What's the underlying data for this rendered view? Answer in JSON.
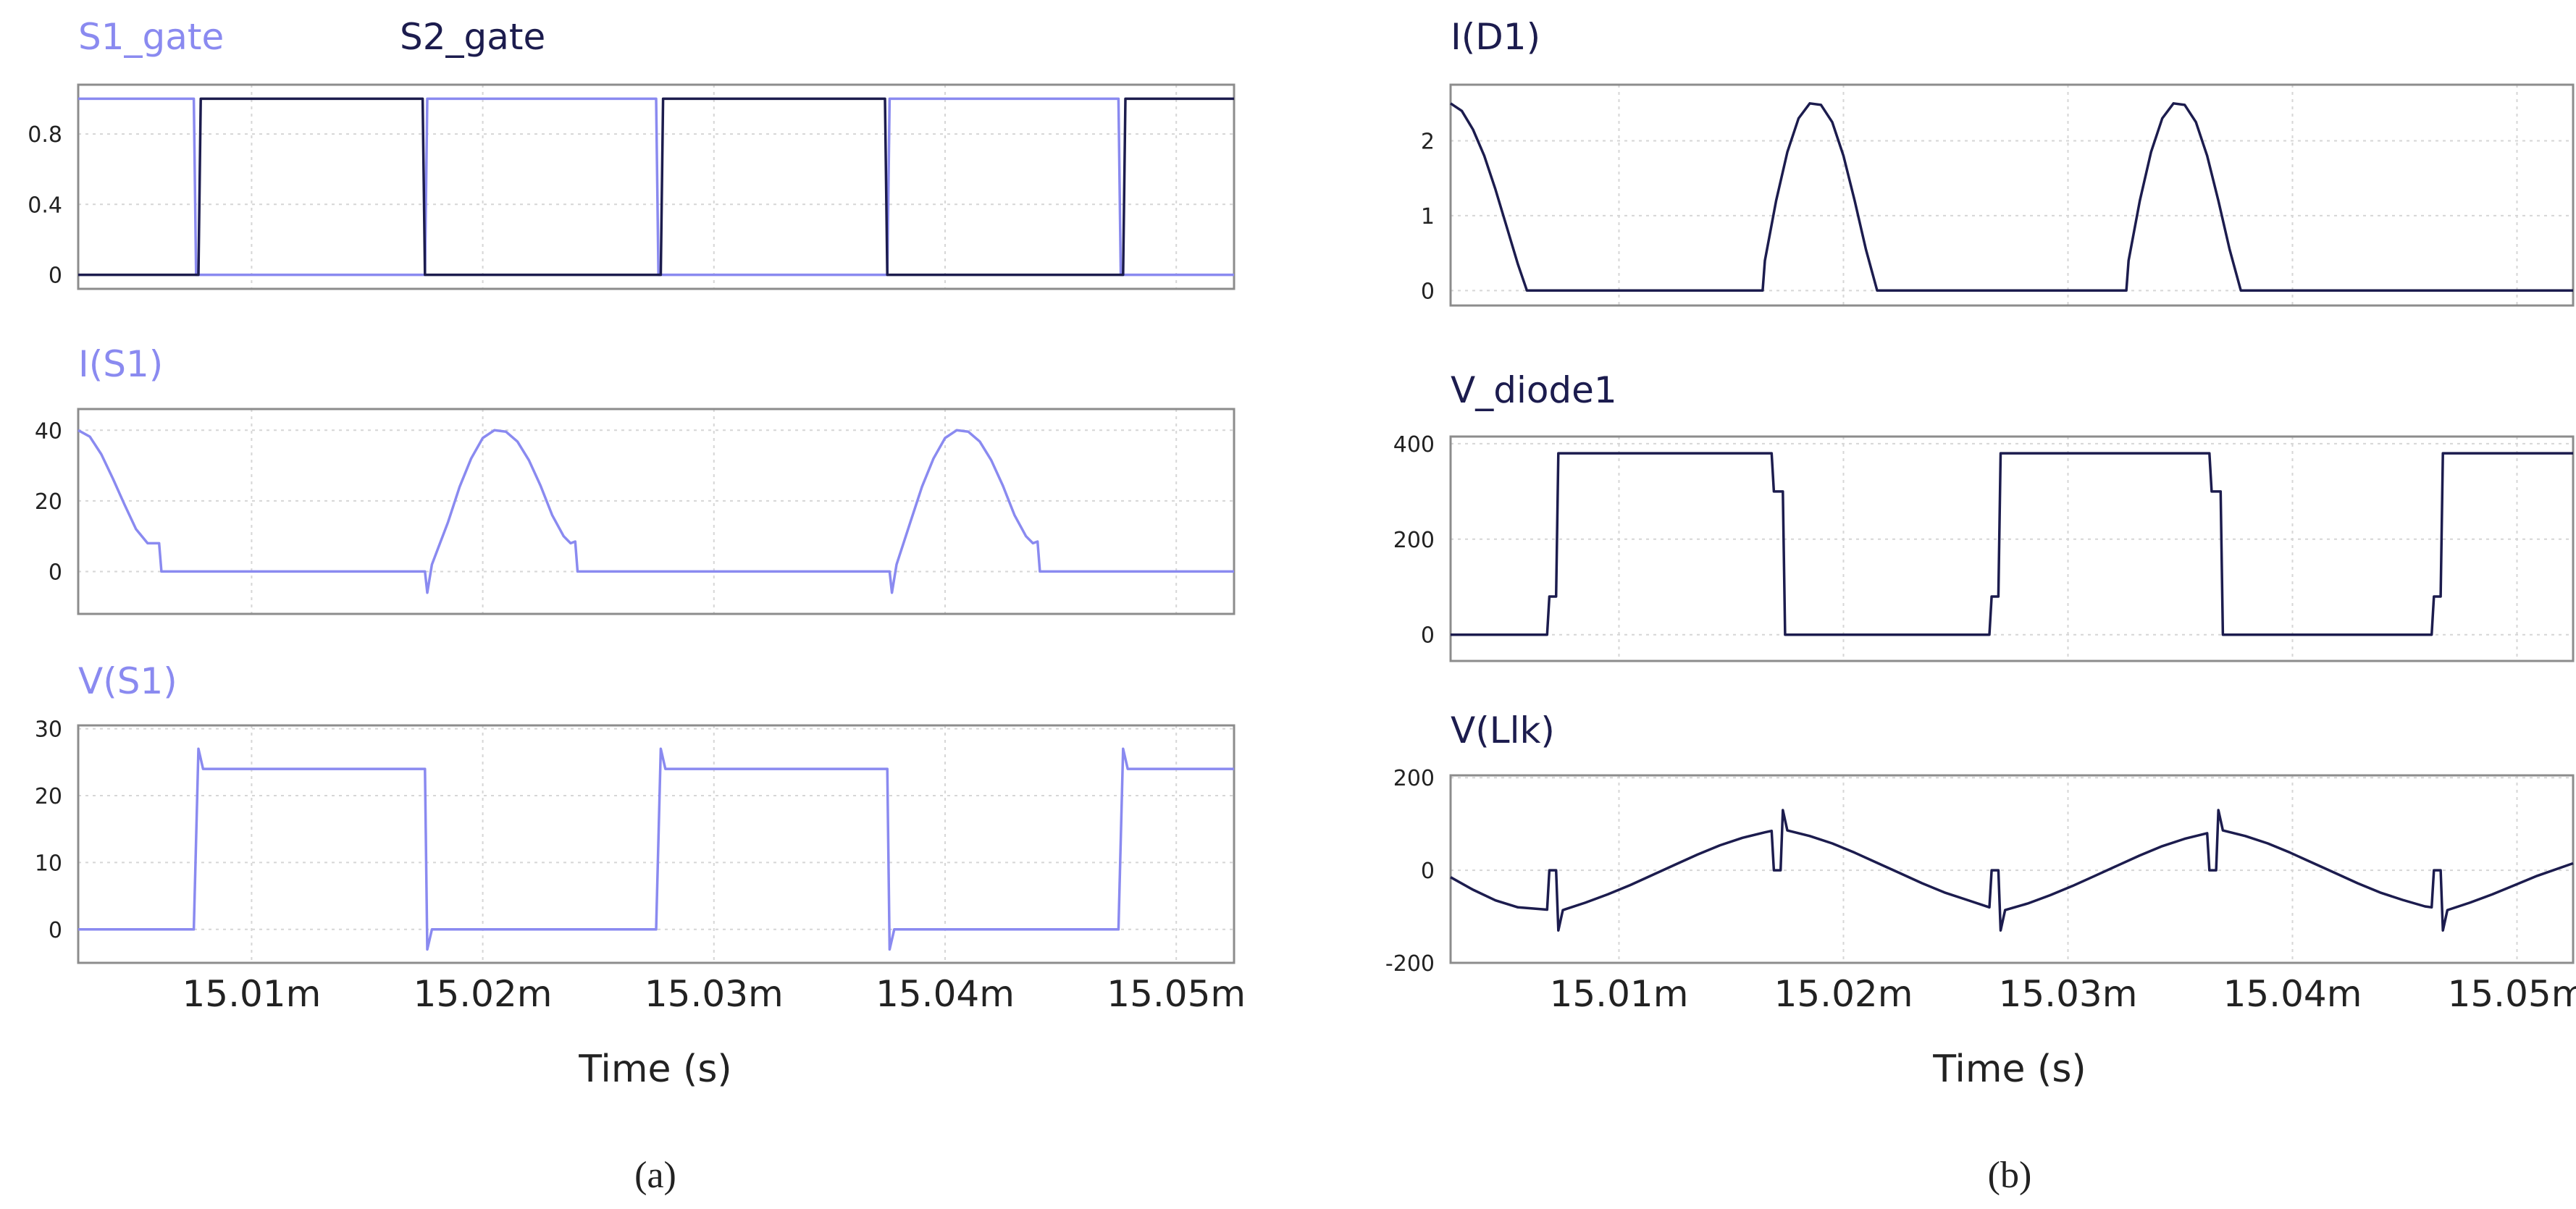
{
  "colors": {
    "light": "#8a8af0",
    "dark": "#1c1c4e",
    "grid": "#d6d6d6",
    "frame": "#8c8c8c",
    "text": "#222222"
  },
  "panels": [
    {
      "caption": "(a)",
      "xlabel": "Time (s)",
      "xticks": [
        15.01,
        15.02,
        15.03,
        15.04,
        15.05
      ],
      "xtick_labels": [
        "15.01m",
        "15.02m",
        "15.03m",
        "15.04m",
        "15.05m"
      ]
    },
    {
      "caption": "(b)",
      "xlabel": "Time (s)",
      "xticks": [
        15.01,
        15.02,
        15.03,
        15.04,
        15.05
      ],
      "xtick_labels": [
        "15.01m",
        "15.02m",
        "15.03m",
        "15.04m",
        "15.05m"
      ]
    }
  ],
  "chart_data": [
    {
      "id": "gates",
      "type": "line",
      "xunit": "ms",
      "xlim": [
        15.0025,
        15.0525
      ],
      "ylim": [
        -0.08,
        1.08
      ],
      "yticks": [
        0,
        0.4,
        0.8
      ],
      "ytick_labels": [
        "0",
        "0.4",
        "0.8"
      ],
      "grid": true,
      "series": [
        {
          "name": "S1_gate",
          "color": "#8a8af0",
          "points": [
            [
              15.0025,
              1
            ],
            [
              15.0075,
              1
            ],
            [
              15.0076,
              0
            ],
            [
              15.0175,
              0
            ],
            [
              15.0176,
              1
            ],
            [
              15.0275,
              1
            ],
            [
              15.0276,
              0
            ],
            [
              15.0375,
              0
            ],
            [
              15.0376,
              1
            ],
            [
              15.0475,
              1
            ],
            [
              15.0476,
              0
            ],
            [
              15.0525,
              0
            ]
          ]
        },
        {
          "name": "S2_gate",
          "color": "#1c1c4e",
          "points": [
            [
              15.0025,
              0
            ],
            [
              15.0077,
              0
            ],
            [
              15.0078,
              1
            ],
            [
              15.0174,
              1
            ],
            [
              15.0175,
              0
            ],
            [
              15.0277,
              0
            ],
            [
              15.0278,
              1
            ],
            [
              15.0374,
              1
            ],
            [
              15.0375,
              0
            ],
            [
              15.0477,
              0
            ],
            [
              15.0478,
              1
            ],
            [
              15.0525,
              1
            ]
          ]
        }
      ]
    },
    {
      "id": "is1",
      "type": "line",
      "xunit": "ms",
      "xlim": [
        15.0025,
        15.0525
      ],
      "ylim": [
        -12,
        46
      ],
      "yticks": [
        0,
        20,
        40
      ],
      "ytick_labels": [
        "0",
        "20",
        "40"
      ],
      "grid": true,
      "series": [
        {
          "name": "I(S1)",
          "color": "#8a8af0",
          "points": [
            [
              15.0025,
              40
            ],
            [
              15.003,
              38.2
            ],
            [
              15.0035,
              33.2
            ],
            [
              15.004,
              26.3
            ],
            [
              15.0045,
              19
            ],
            [
              15.005,
              12
            ],
            [
              15.0055,
              8
            ],
            [
              15.006,
              8
            ],
            [
              15.0061,
              0
            ],
            [
              15.0175,
              0
            ],
            [
              15.0176,
              -6
            ],
            [
              15.0178,
              2
            ],
            [
              15.0185,
              14
            ],
            [
              15.019,
              24
            ],
            [
              15.0195,
              32
            ],
            [
              15.02,
              37.8
            ],
            [
              15.0205,
              40
            ],
            [
              15.021,
              39.6
            ],
            [
              15.0215,
              36.8
            ],
            [
              15.022,
              31.5
            ],
            [
              15.0225,
              24.3
            ],
            [
              15.023,
              16
            ],
            [
              15.0235,
              10
            ],
            [
              15.0238,
              8
            ],
            [
              15.024,
              8.5
            ],
            [
              15.0241,
              0
            ],
            [
              15.0376,
              0
            ],
            [
              15.0377,
              -6
            ],
            [
              15.0379,
              2
            ],
            [
              15.0385,
              14
            ],
            [
              15.039,
              24
            ],
            [
              15.0395,
              32
            ],
            [
              15.04,
              37.8
            ],
            [
              15.0405,
              40
            ],
            [
              15.041,
              39.6
            ],
            [
              15.0415,
              36.8
            ],
            [
              15.042,
              31.5
            ],
            [
              15.0425,
              24.3
            ],
            [
              15.043,
              16
            ],
            [
              15.0435,
              10
            ],
            [
              15.0438,
              8
            ],
            [
              15.044,
              8.5
            ],
            [
              15.0441,
              0
            ],
            [
              15.0525,
              0
            ]
          ]
        }
      ]
    },
    {
      "id": "vs1",
      "type": "line",
      "xunit": "ms",
      "xlim": [
        15.0025,
        15.0525
      ],
      "ylim": [
        -5,
        30.5
      ],
      "yticks": [
        0,
        10,
        20,
        30
      ],
      "ytick_labels": [
        "0",
        "10",
        "20",
        "30"
      ],
      "grid": true,
      "series": [
        {
          "name": "V(S1)",
          "color": "#8a8af0",
          "points": [
            [
              15.0025,
              0
            ],
            [
              15.0075,
              0
            ],
            [
              15.0077,
              27
            ],
            [
              15.0079,
              24
            ],
            [
              15.0175,
              24
            ],
            [
              15.0176,
              -3
            ],
            [
              15.0178,
              0
            ],
            [
              15.0275,
              0
            ],
            [
              15.0277,
              27
            ],
            [
              15.0279,
              24
            ],
            [
              15.0375,
              24
            ],
            [
              15.0376,
              -3
            ],
            [
              15.0378,
              0
            ],
            [
              15.0475,
              0
            ],
            [
              15.0477,
              27
            ],
            [
              15.0479,
              24
            ],
            [
              15.0525,
              24
            ]
          ]
        }
      ]
    },
    {
      "id": "id1",
      "type": "line",
      "xunit": "ms",
      "xlim": [
        15.0025,
        15.0525
      ],
      "ylim": [
        -0.2,
        2.75
      ],
      "yticks": [
        0,
        1,
        2
      ],
      "ytick_labels": [
        "0",
        "1",
        "2"
      ],
      "grid": true,
      "series": [
        {
          "name": "I(D1)",
          "color": "#1c1c4e",
          "points": [
            [
              15.0025,
              2.5
            ],
            [
              15.003,
              2.4
            ],
            [
              15.0035,
              2.15
            ],
            [
              15.004,
              1.8
            ],
            [
              15.0045,
              1.35
            ],
            [
              15.005,
              0.85
            ],
            [
              15.0055,
              0.35
            ],
            [
              15.0059,
              0
            ],
            [
              15.0164,
              0
            ],
            [
              15.0165,
              0.4
            ],
            [
              15.017,
              1.2
            ],
            [
              15.0175,
              1.85
            ],
            [
              15.018,
              2.3
            ],
            [
              15.0185,
              2.5
            ],
            [
              15.019,
              2.48
            ],
            [
              15.0195,
              2.25
            ],
            [
              15.02,
              1.8
            ],
            [
              15.0205,
              1.2
            ],
            [
              15.021,
              0.55
            ],
            [
              15.0215,
              0
            ],
            [
              15.0326,
              0
            ],
            [
              15.0327,
              0.4
            ],
            [
              15.0332,
              1.2
            ],
            [
              15.0337,
              1.85
            ],
            [
              15.0342,
              2.3
            ],
            [
              15.0347,
              2.5
            ],
            [
              15.0352,
              2.48
            ],
            [
              15.0357,
              2.25
            ],
            [
              15.0362,
              1.8
            ],
            [
              15.0367,
              1.2
            ],
            [
              15.0372,
              0.55
            ],
            [
              15.0377,
              0
            ],
            [
              15.0525,
              0
            ]
          ]
        }
      ]
    },
    {
      "id": "vdiode1",
      "type": "line",
      "xunit": "ms",
      "xlim": [
        15.0025,
        15.0525
      ],
      "ylim": [
        -55,
        415
      ],
      "yticks": [
        0,
        200,
        400
      ],
      "ytick_labels": [
        "0",
        "200",
        "400"
      ],
      "grid": true,
      "series": [
        {
          "name": "V_diode1",
          "color": "#1c1c4e",
          "points": [
            [
              15.0025,
              0
            ],
            [
              15.0068,
              0
            ],
            [
              15.0069,
              80
            ],
            [
              15.0072,
              80
            ],
            [
              15.0073,
              380
            ],
            [
              15.0168,
              380
            ],
            [
              15.0169,
              300
            ],
            [
              15.0173,
              300
            ],
            [
              15.0174,
              0
            ],
            [
              15.0265,
              0
            ],
            [
              15.0266,
              80
            ],
            [
              15.0269,
              80
            ],
            [
              15.027,
              380
            ],
            [
              15.0363,
              380
            ],
            [
              15.0364,
              300
            ],
            [
              15.0368,
              300
            ],
            [
              15.0369,
              0
            ],
            [
              15.0462,
              0
            ],
            [
              15.0463,
              80
            ],
            [
              15.0466,
              80
            ],
            [
              15.0467,
              380
            ],
            [
              15.0525,
              380
            ]
          ]
        }
      ]
    },
    {
      "id": "vllk",
      "type": "line",
      "xunit": "ms",
      "xlim": [
        15.0025,
        15.0525
      ],
      "ylim": [
        -200,
        205
      ],
      "yticks": [
        -200,
        0,
        200
      ],
      "ytick_labels": [
        "-200",
        "0",
        "200"
      ],
      "grid": true,
      "series": [
        {
          "name": "V(Llk)",
          "color": "#1c1c4e",
          "points": [
            [
              15.0025,
              -15
            ],
            [
              15.0035,
              -42
            ],
            [
              15.0045,
              -65
            ],
            [
              15.0055,
              -80
            ],
            [
              15.0068,
              -85
            ],
            [
              15.0069,
              0
            ],
            [
              15.0072,
              0
            ],
            [
              15.0073,
              -130
            ],
            [
              15.0075,
              -86
            ],
            [
              15.0085,
              -70
            ],
            [
              15.0095,
              -52
            ],
            [
              15.0105,
              -32
            ],
            [
              15.0115,
              -10
            ],
            [
              15.0125,
              12
            ],
            [
              15.0135,
              34
            ],
            [
              15.0145,
              54
            ],
            [
              15.0155,
              70
            ],
            [
              15.0165,
              82
            ],
            [
              15.0168,
              85
            ],
            [
              15.0169,
              0
            ],
            [
              15.0172,
              0
            ],
            [
              15.0173,
              130
            ],
            [
              15.0175,
              86
            ],
            [
              15.0185,
              74
            ],
            [
              15.0195,
              58
            ],
            [
              15.0205,
              38
            ],
            [
              15.0215,
              16
            ],
            [
              15.0225,
              -6
            ],
            [
              15.0235,
              -28
            ],
            [
              15.0245,
              -48
            ],
            [
              15.0255,
              -64
            ],
            [
              15.0265,
              -80
            ],
            [
              15.0266,
              0
            ],
            [
              15.0269,
              0
            ],
            [
              15.027,
              -130
            ],
            [
              15.0272,
              -86
            ],
            [
              15.0282,
              -72
            ],
            [
              15.0292,
              -54
            ],
            [
              15.0302,
              -34
            ],
            [
              15.0312,
              -12
            ],
            [
              15.0322,
              10
            ],
            [
              15.0332,
              32
            ],
            [
              15.0342,
              52
            ],
            [
              15.0352,
              68
            ],
            [
              15.0362,
              80
            ],
            [
              15.0363,
              0
            ],
            [
              15.0366,
              0
            ],
            [
              15.0367,
              130
            ],
            [
              15.0369,
              86
            ],
            [
              15.0379,
              74
            ],
            [
              15.0389,
              58
            ],
            [
              15.0399,
              38
            ],
            [
              15.0409,
              16
            ],
            [
              15.0419,
              -6
            ],
            [
              15.0429,
              -28
            ],
            [
              15.0439,
              -48
            ],
            [
              15.0449,
              -64
            ],
            [
              15.0459,
              -78
            ],
            [
              15.0462,
              -80
            ],
            [
              15.0463,
              0
            ],
            [
              15.0466,
              0
            ],
            [
              15.0467,
              -130
            ],
            [
              15.0469,
              -86
            ],
            [
              15.0479,
              -70
            ],
            [
              15.0489,
              -52
            ],
            [
              15.0499,
              -32
            ],
            [
              15.0509,
              -12
            ],
            [
              15.0525,
              15
            ]
          ]
        }
      ]
    }
  ]
}
